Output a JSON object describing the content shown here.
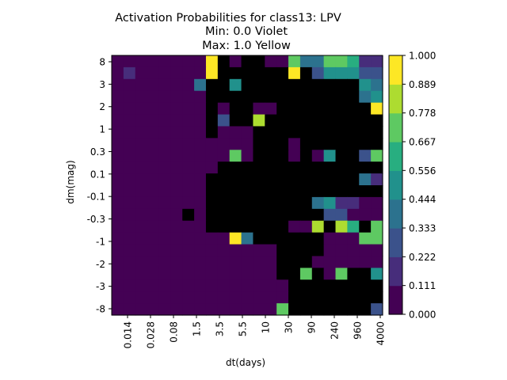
{
  "chart_data": {
    "type": "heatmap",
    "title": [
      "Activation Probabilities for class13: LPV",
      "Min: 0.0 Violet",
      "Max: 1.0 Yellow"
    ],
    "xlabel": "dt(days)",
    "ylabel": "dm(mag)",
    "x_tick_labels": [
      "0.014",
      "0.028",
      "0.08",
      "1.5",
      "3.5",
      "5.5",
      "10",
      "30",
      "90",
      "240",
      "960",
      "4000"
    ],
    "y_tick_labels": [
      "8",
      "3",
      "2",
      "1",
      "0.3",
      "0.1",
      "-0.1",
      "-0.3",
      "-1",
      "-2",
      "-3",
      "-8"
    ],
    "colorbar": {
      "min": 0.0,
      "max": 1.0,
      "levels": 9,
      "tick_labels": [
        "0.000",
        "0.111",
        "0.222",
        "0.333",
        "0.444",
        "0.556",
        "0.667",
        "0.778",
        "0.889",
        "1.000"
      ],
      "colors": [
        "#440154",
        "#472d7b",
        "#3b528b",
        "#2c728e",
        "#21918c",
        "#28ae80",
        "#5ec962",
        "#addc30",
        "#fde725"
      ]
    },
    "grid": false,
    "cols": 23,
    "rows": 22,
    "values": [
      [
        0,
        0,
        0,
        0,
        0,
        0,
        0,
        0,
        8,
        9,
        0,
        9,
        9,
        0,
        0,
        6,
        3,
        3,
        6,
        6,
        5,
        1,
        1
      ],
      [
        0,
        1,
        0,
        0,
        0,
        0,
        0,
        0,
        8,
        9,
        9,
        9,
        9,
        9,
        9,
        8,
        9,
        2,
        4,
        4,
        4,
        2,
        2
      ],
      [
        0,
        0,
        0,
        0,
        0,
        0,
        0,
        3,
        9,
        9,
        4,
        9,
        9,
        9,
        9,
        9,
        9,
        9,
        9,
        9,
        9,
        4,
        3
      ],
      [
        0,
        0,
        0,
        0,
        0,
        0,
        0,
        0,
        9,
        9,
        9,
        9,
        9,
        9,
        9,
        9,
        9,
        9,
        9,
        9,
        9,
        3,
        4
      ],
      [
        0,
        0,
        0,
        0,
        0,
        0,
        0,
        0,
        9,
        0,
        9,
        9,
        0,
        0,
        9,
        9,
        9,
        9,
        9,
        9,
        9,
        9,
        8
      ],
      [
        0,
        0,
        0,
        0,
        0,
        0,
        0,
        0,
        9,
        2,
        9,
        9,
        7,
        9,
        9,
        9,
        9,
        9,
        9,
        9,
        9,
        9,
        9
      ],
      [
        0,
        0,
        0,
        0,
        0,
        0,
        0,
        0,
        9,
        0,
        0,
        0,
        9,
        9,
        9,
        9,
        9,
        9,
        9,
        9,
        9,
        9,
        9
      ],
      [
        0,
        0,
        0,
        0,
        0,
        0,
        0,
        0,
        0,
        0,
        0,
        0,
        9,
        9,
        9,
        0,
        9,
        9,
        9,
        9,
        9,
        9,
        9
      ],
      [
        0,
        0,
        0,
        0,
        0,
        0,
        0,
        0,
        0,
        0,
        6,
        0,
        9,
        9,
        9,
        0,
        9,
        0,
        4,
        9,
        9,
        2,
        6
      ],
      [
        0,
        0,
        0,
        0,
        0,
        0,
        0,
        0,
        0,
        9,
        9,
        9,
        9,
        9,
        9,
        9,
        9,
        9,
        9,
        9,
        9,
        9,
        9
      ],
      [
        0,
        0,
        0,
        0,
        0,
        0,
        0,
        0,
        9,
        9,
        9,
        9,
        9,
        9,
        9,
        9,
        9,
        9,
        9,
        9,
        9,
        3,
        1
      ],
      [
        0,
        0,
        0,
        0,
        0,
        0,
        0,
        0,
        9,
        9,
        9,
        9,
        9,
        9,
        9,
        9,
        9,
        9,
        9,
        9,
        9,
        9,
        9
      ],
      [
        0,
        0,
        0,
        0,
        0,
        0,
        0,
        0,
        9,
        9,
        9,
        9,
        9,
        9,
        9,
        9,
        9,
        3,
        4,
        1,
        1,
        0,
        0
      ],
      [
        0,
        0,
        0,
        0,
        0,
        0,
        9,
        0,
        9,
        9,
        9,
        9,
        9,
        9,
        9,
        9,
        9,
        9,
        2,
        2,
        0,
        0,
        0
      ],
      [
        0,
        0,
        0,
        0,
        0,
        0,
        0,
        0,
        9,
        9,
        9,
        9,
        9,
        9,
        9,
        0,
        0,
        7,
        9,
        7,
        5,
        9,
        6
      ],
      [
        0,
        0,
        0,
        0,
        0,
        0,
        0,
        0,
        0,
        0,
        8,
        3,
        9,
        9,
        9,
        9,
        9,
        9,
        0,
        0,
        0,
        6,
        6
      ],
      [
        0,
        0,
        0,
        0,
        0,
        0,
        0,
        0,
        0,
        0,
        0,
        0,
        0,
        0,
        9,
        9,
        9,
        9,
        0,
        0,
        0,
        0,
        0
      ],
      [
        0,
        0,
        0,
        0,
        0,
        0,
        0,
        0,
        0,
        0,
        0,
        0,
        0,
        0,
        9,
        9,
        9,
        0,
        0,
        0,
        0,
        0,
        0
      ],
      [
        0,
        0,
        0,
        0,
        0,
        0,
        0,
        0,
        0,
        0,
        0,
        0,
        0,
        0,
        9,
        9,
        6,
        9,
        0,
        6,
        9,
        9,
        4
      ],
      [
        0,
        0,
        0,
        0,
        0,
        0,
        0,
        0,
        0,
        0,
        0,
        0,
        0,
        0,
        0,
        9,
        9,
        9,
        9,
        9,
        9,
        9,
        9
      ],
      [
        0,
        0,
        0,
        0,
        0,
        0,
        0,
        0,
        0,
        0,
        0,
        0,
        0,
        0,
        0,
        9,
        9,
        9,
        9,
        9,
        9,
        9,
        9
      ],
      [
        0,
        0,
        0,
        0,
        0,
        0,
        0,
        0,
        0,
        0,
        0,
        0,
        0,
        0,
        6,
        9,
        9,
        9,
        9,
        9,
        9,
        9,
        2
      ]
    ]
  }
}
